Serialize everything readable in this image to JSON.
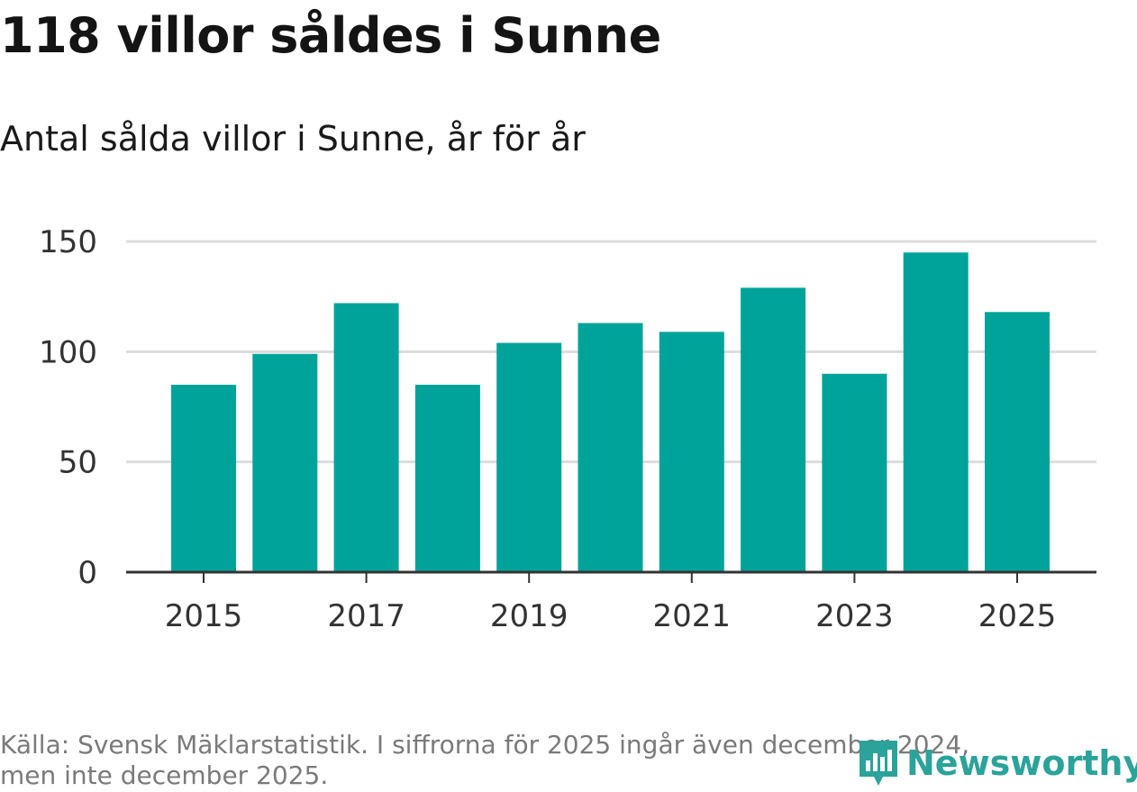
{
  "title": "118 villor såldes i Sunne",
  "subtitle": "Antal sålda villor i Sunne, år för år",
  "footer": {
    "source_line1": "Källa: Svensk Mäklarstatistik. I siffrorna för 2025 ingår även december 2024,",
    "source_line2": "men inte december 2025."
  },
  "logo": {
    "text": "Newsworthy",
    "icon": "newsworthy-logo-icon",
    "color": "#2ba39a"
  },
  "colors": {
    "bar": "#00a39a",
    "grid": "#dcdcdc",
    "axis": "#333333",
    "tick_text": "#333333"
  },
  "chart_data": {
    "type": "bar",
    "title": "118 villor såldes i Sunne",
    "subtitle": "Antal sålda villor i Sunne, år för år",
    "xlabel": "",
    "ylabel": "",
    "categories": [
      "2015",
      "2016",
      "2017",
      "2018",
      "2019",
      "2020",
      "2021",
      "2022",
      "2023",
      "2024",
      "2025"
    ],
    "values": [
      85,
      99,
      122,
      85,
      104,
      113,
      109,
      129,
      90,
      145,
      118
    ],
    "ylim": [
      0,
      150
    ],
    "yticks": [
      0,
      50,
      100,
      150
    ],
    "xticks": [
      "2015",
      "2017",
      "2019",
      "2021",
      "2023",
      "2025"
    ],
    "grid": "horizontal",
    "legend": "none"
  }
}
